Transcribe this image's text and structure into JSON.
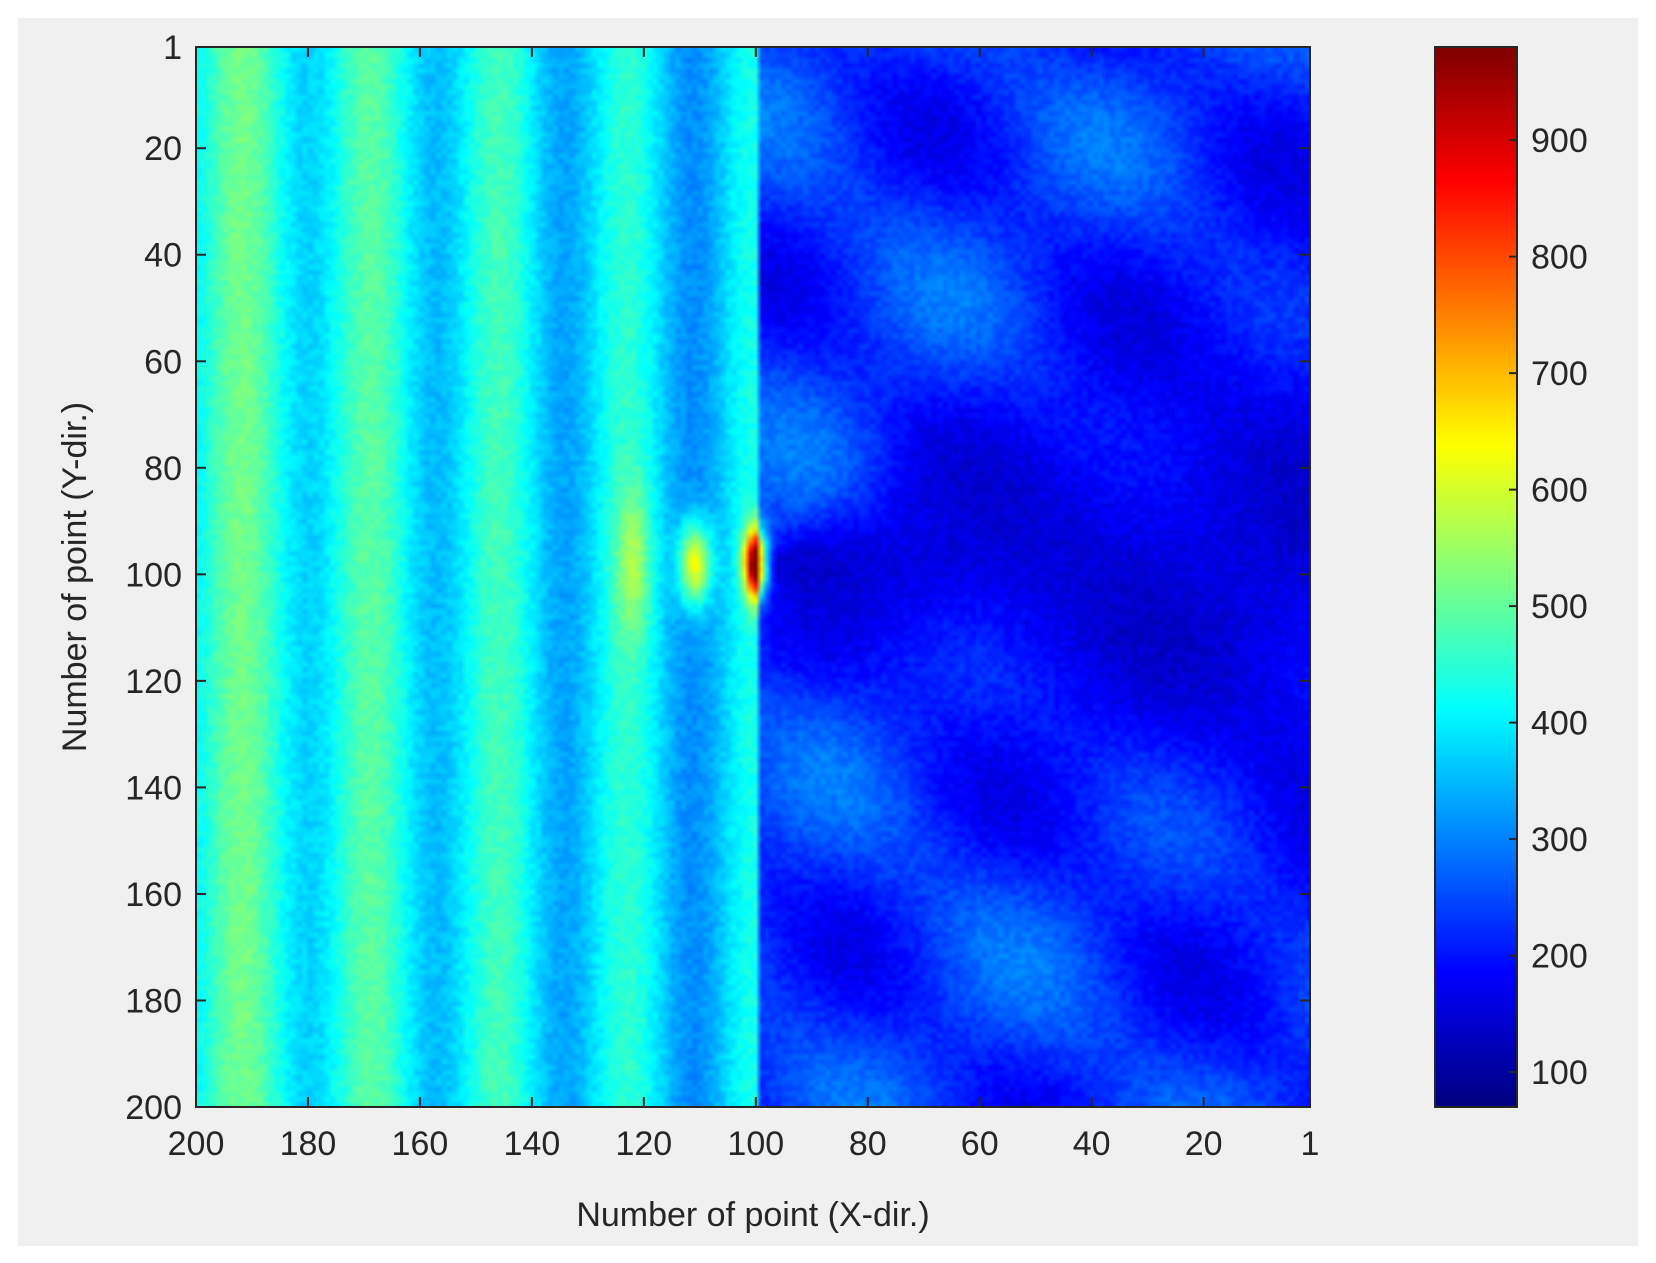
{
  "chart_data": {
    "type": "heatmap",
    "title": "",
    "xlabel": "Number of point (X-dir.)",
    "ylabel": "Number of point (Y-dir.)",
    "x_axis": {
      "direction": "reversed",
      "range": [
        200,
        1
      ],
      "ticks": [
        {
          "value": 200,
          "label": "200"
        },
        {
          "value": 180,
          "label": "180"
        },
        {
          "value": 160,
          "label": "160"
        },
        {
          "value": 140,
          "label": "140"
        },
        {
          "value": 120,
          "label": "120"
        },
        {
          "value": 100,
          "label": "100"
        },
        {
          "value": 80,
          "label": "80"
        },
        {
          "value": 60,
          "label": "60"
        },
        {
          "value": 40,
          "label": "40"
        },
        {
          "value": 20,
          "label": "20"
        },
        {
          "value": 1,
          "label": "1"
        }
      ]
    },
    "y_axis": {
      "direction": "top-to-bottom",
      "range": [
        1,
        200
      ],
      "ticks": [
        {
          "value": 1,
          "label": "1"
        },
        {
          "value": 20,
          "label": "20"
        },
        {
          "value": 40,
          "label": "40"
        },
        {
          "value": 60,
          "label": "60"
        },
        {
          "value": 80,
          "label": "80"
        },
        {
          "value": 100,
          "label": "100"
        },
        {
          "value": 120,
          "label": "120"
        },
        {
          "value": 140,
          "label": "140"
        },
        {
          "value": 160,
          "label": "160"
        },
        {
          "value": 180,
          "label": "180"
        },
        {
          "value": 200,
          "label": "200"
        }
      ]
    },
    "colorbar": {
      "colormap": "jet",
      "range": [
        70,
        980
      ],
      "ticks": [
        {
          "value": 100,
          "label": "100"
        },
        {
          "value": 200,
          "label": "200"
        },
        {
          "value": 300,
          "label": "300"
        },
        {
          "value": 400,
          "label": "400"
        },
        {
          "value": 500,
          "label": "500"
        },
        {
          "value": 600,
          "label": "600"
        },
        {
          "value": 700,
          "label": "700"
        },
        {
          "value": 800,
          "label": "800"
        },
        {
          "value": 900,
          "label": "900"
        }
      ]
    },
    "features": {
      "peak": {
        "x": 100,
        "y": 98,
        "value": 950
      },
      "secondary_peak": {
        "x": 111,
        "y": 98,
        "value": 680
      },
      "left_background_level": 460,
      "right_wake_level": 110
    }
  },
  "colors": {
    "figure_background": "#f0f0f0",
    "axes_box": "#262626",
    "text": "#262626"
  }
}
